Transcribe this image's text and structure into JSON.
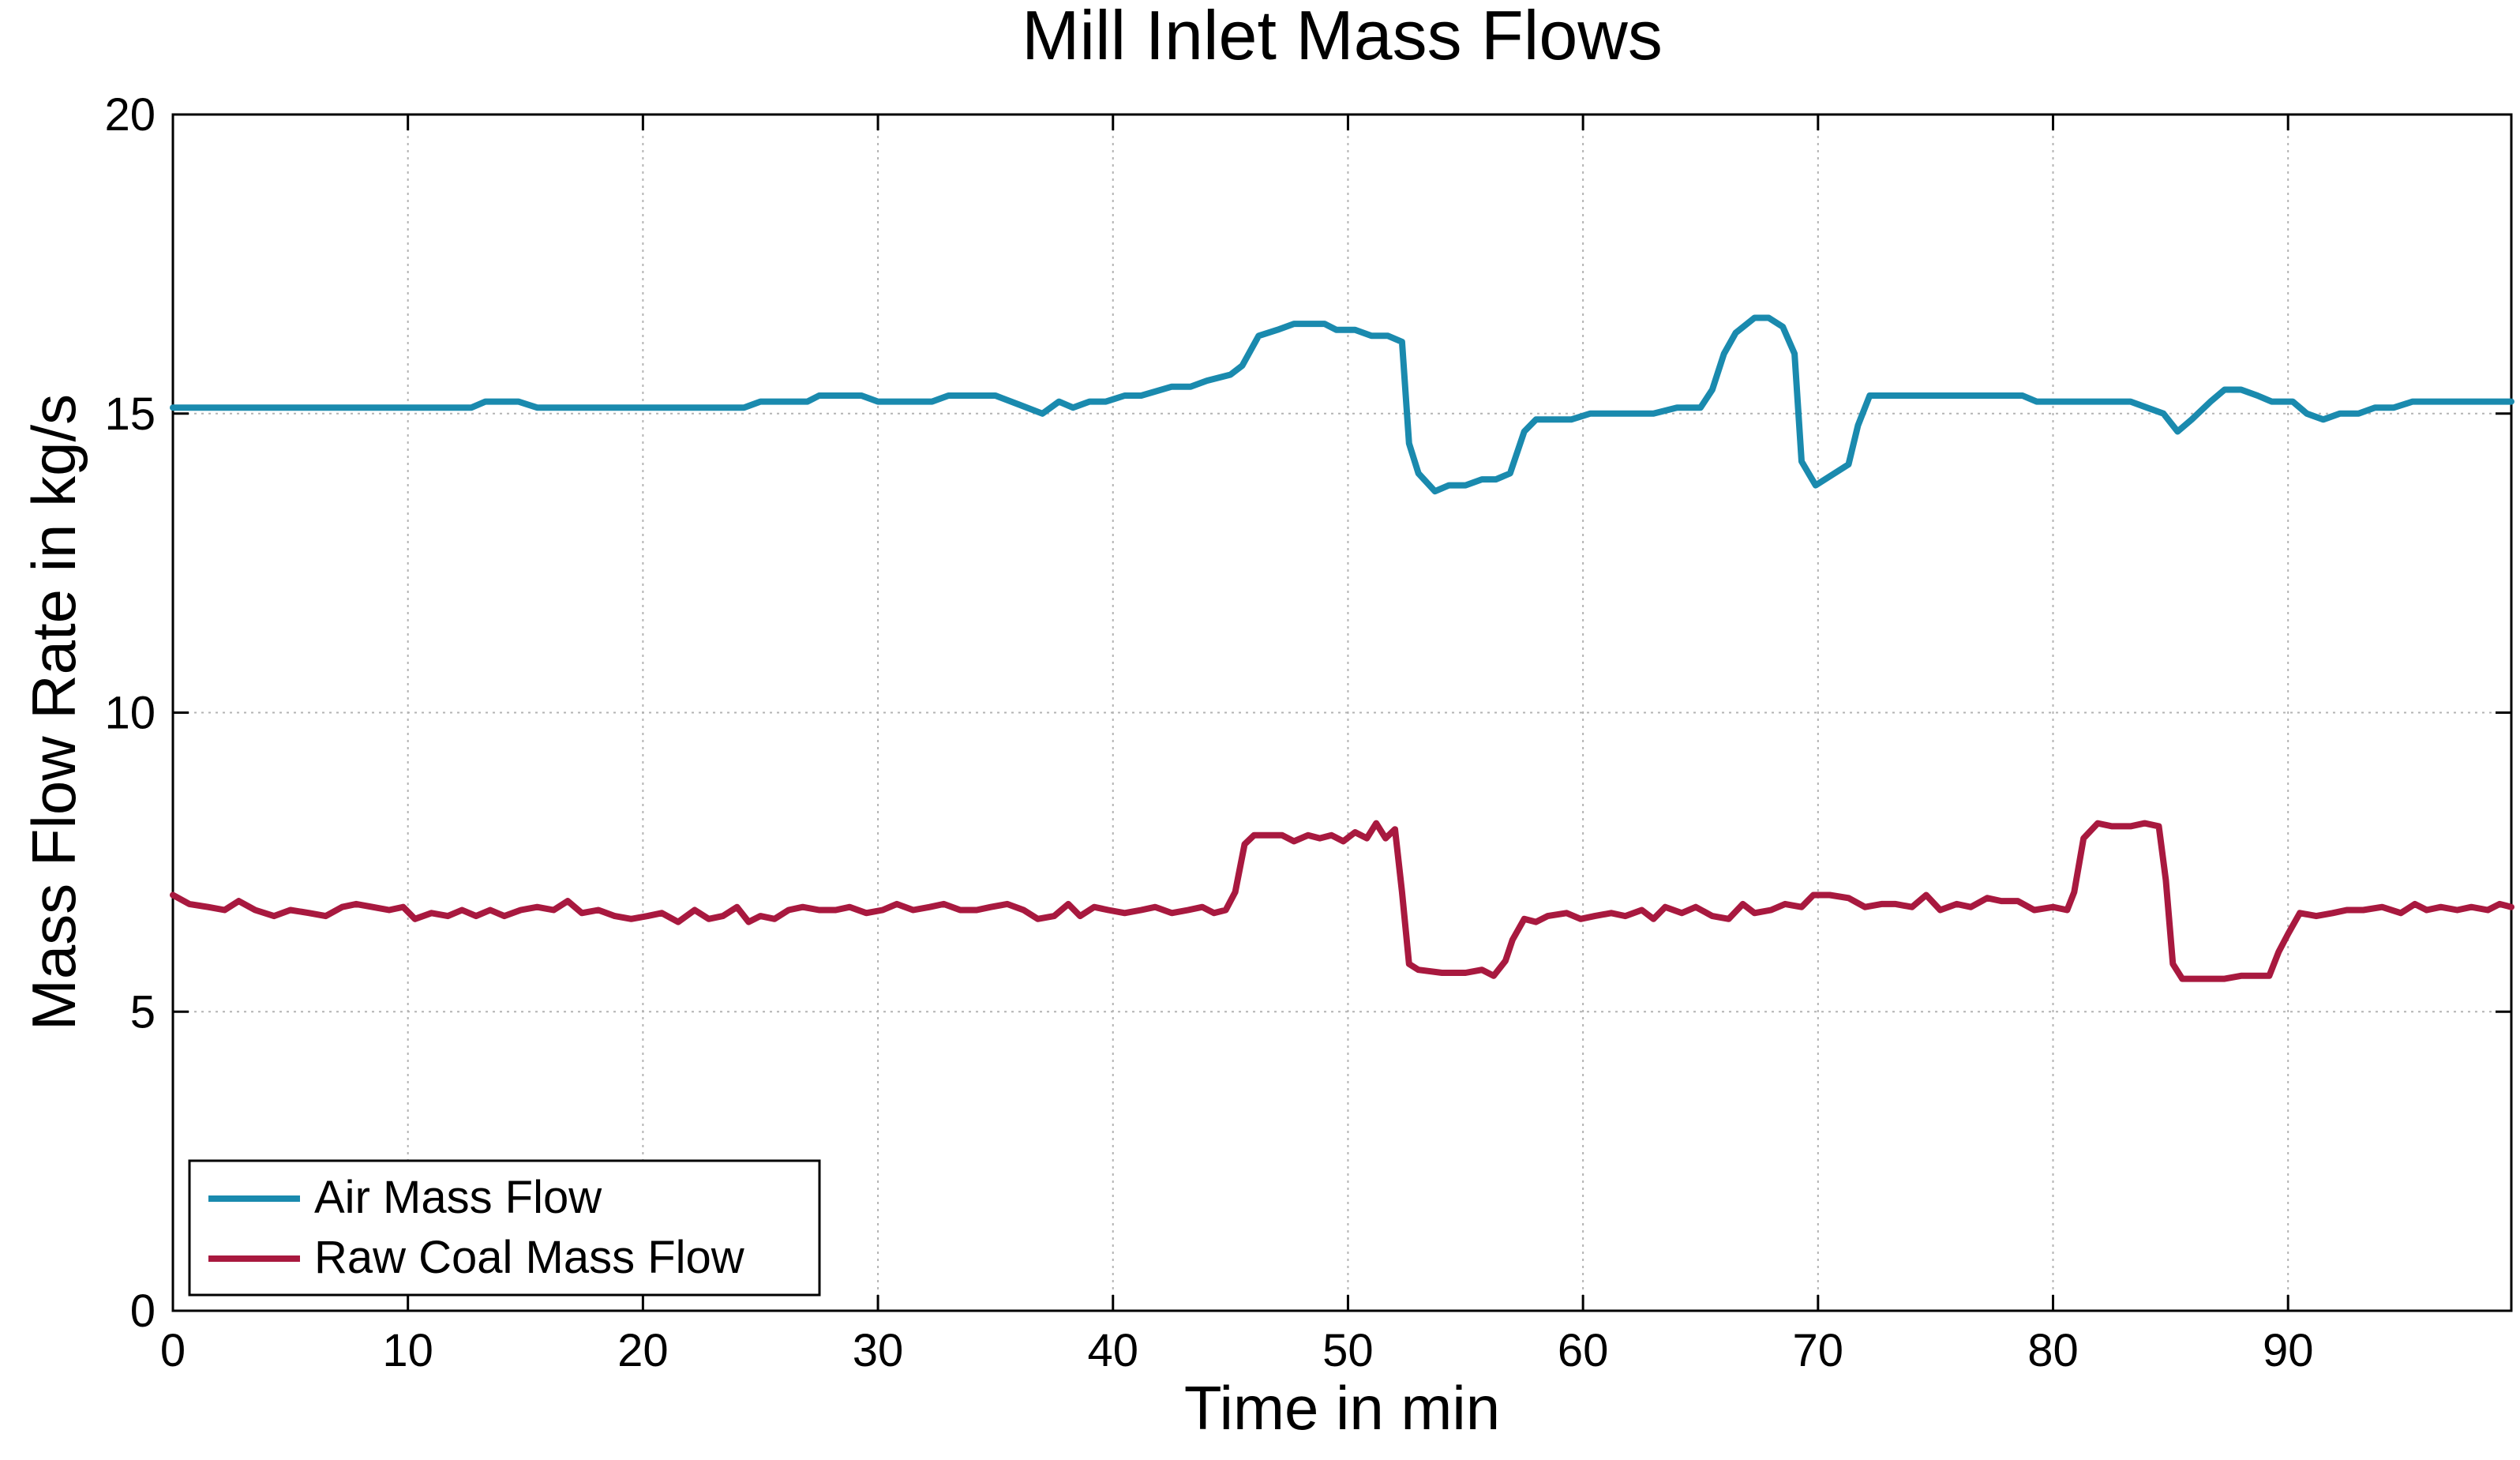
{
  "chart_data": {
    "type": "line",
    "title": "Mill Inlet Mass Flows",
    "xlabel": "Time in min",
    "ylabel": "Mass Flow Rate in kg/s",
    "xlim": [
      0,
      99.5
    ],
    "ylim": [
      0,
      20
    ],
    "xticks": [
      0,
      10,
      20,
      30,
      40,
      50,
      60,
      70,
      80,
      90
    ],
    "yticks": [
      0,
      5,
      10,
      15,
      20
    ],
    "grid": true,
    "legend_position": "bottom-left",
    "series": [
      {
        "name": "Air Mass Flow",
        "color": "#1A8AAE",
        "points": [
          [
            0,
            15.1
          ],
          [
            12.7,
            15.1
          ],
          [
            13.3,
            15.2
          ],
          [
            14.7,
            15.2
          ],
          [
            15.5,
            15.1
          ],
          [
            24.3,
            15.1
          ],
          [
            25,
            15.2
          ],
          [
            27,
            15.2
          ],
          [
            27.5,
            15.3
          ],
          [
            29.3,
            15.3
          ],
          [
            30,
            15.2
          ],
          [
            32.3,
            15.2
          ],
          [
            33,
            15.3
          ],
          [
            35,
            15.3
          ],
          [
            36,
            15.15
          ],
          [
            37,
            15.0
          ],
          [
            37.7,
            15.2
          ],
          [
            38.3,
            15.1
          ],
          [
            39,
            15.2
          ],
          [
            39.7,
            15.2
          ],
          [
            40.5,
            15.3
          ],
          [
            41.2,
            15.3
          ],
          [
            42.5,
            15.45
          ],
          [
            43.3,
            15.45
          ],
          [
            44,
            15.55
          ],
          [
            45,
            15.65
          ],
          [
            45.5,
            15.8
          ],
          [
            46.2,
            16.3
          ],
          [
            47,
            16.4
          ],
          [
            47.7,
            16.5
          ],
          [
            49,
            16.5
          ],
          [
            49.5,
            16.4
          ],
          [
            50.3,
            16.4
          ],
          [
            51,
            16.3
          ],
          [
            51.7,
            16.3
          ],
          [
            52.3,
            16.2
          ],
          [
            52.6,
            14.5
          ],
          [
            53,
            14.0
          ],
          [
            53.7,
            13.7
          ],
          [
            54.3,
            13.8
          ],
          [
            55,
            13.8
          ],
          [
            55.7,
            13.9
          ],
          [
            56.3,
            13.9
          ],
          [
            56.9,
            14.0
          ],
          [
            57.5,
            14.7
          ],
          [
            58,
            14.9
          ],
          [
            59.5,
            14.9
          ],
          [
            60.3,
            15.0
          ],
          [
            63,
            15.0
          ],
          [
            64,
            15.1
          ],
          [
            65,
            15.1
          ],
          [
            65.5,
            15.4
          ],
          [
            66,
            16.0
          ],
          [
            66.5,
            16.35
          ],
          [
            67.3,
            16.6
          ],
          [
            67.9,
            16.6
          ],
          [
            68.5,
            16.45
          ],
          [
            69,
            16.0
          ],
          [
            69.3,
            14.2
          ],
          [
            69.9,
            13.8
          ],
          [
            70.5,
            13.95
          ],
          [
            71.3,
            14.15
          ],
          [
            71.7,
            14.8
          ],
          [
            72.2,
            15.3
          ],
          [
            78.7,
            15.3
          ],
          [
            79.3,
            15.2
          ],
          [
            83.3,
            15.2
          ],
          [
            84,
            15.1
          ],
          [
            84.7,
            15.0
          ],
          [
            85.3,
            14.7
          ],
          [
            85.9,
            14.9
          ],
          [
            86.7,
            15.2
          ],
          [
            87.3,
            15.4
          ],
          [
            88,
            15.4
          ],
          [
            88.7,
            15.3
          ],
          [
            89.3,
            15.2
          ],
          [
            90.2,
            15.2
          ],
          [
            90.8,
            15.0
          ],
          [
            91.5,
            14.9
          ],
          [
            92.2,
            15.0
          ],
          [
            93,
            15.0
          ],
          [
            93.7,
            15.1
          ],
          [
            94.5,
            15.1
          ],
          [
            95.3,
            15.2
          ],
          [
            99.5,
            15.2
          ]
        ]
      },
      {
        "name": "Raw Coal Mass Flow",
        "color": "#A8193F",
        "points": [
          [
            0,
            6.95
          ],
          [
            0.7,
            6.8
          ],
          [
            1.5,
            6.75
          ],
          [
            2.2,
            6.7
          ],
          [
            2.8,
            6.85
          ],
          [
            3.5,
            6.7
          ],
          [
            4.3,
            6.6
          ],
          [
            5,
            6.7
          ],
          [
            5.8,
            6.65
          ],
          [
            6.5,
            6.6
          ],
          [
            7.2,
            6.75
          ],
          [
            7.8,
            6.8
          ],
          [
            8.5,
            6.75
          ],
          [
            9.2,
            6.7
          ],
          [
            9.8,
            6.75
          ],
          [
            10.3,
            6.55
          ],
          [
            11,
            6.65
          ],
          [
            11.7,
            6.6
          ],
          [
            12.3,
            6.7
          ],
          [
            12.9,
            6.6
          ],
          [
            13.5,
            6.7
          ],
          [
            14.1,
            6.6
          ],
          [
            14.8,
            6.7
          ],
          [
            15.5,
            6.75
          ],
          [
            16.2,
            6.7
          ],
          [
            16.8,
            6.85
          ],
          [
            17.4,
            6.65
          ],
          [
            18.1,
            6.7
          ],
          [
            18.8,
            6.6
          ],
          [
            19.5,
            6.55
          ],
          [
            20.2,
            6.6
          ],
          [
            20.8,
            6.65
          ],
          [
            21.5,
            6.5
          ],
          [
            22.2,
            6.7
          ],
          [
            22.8,
            6.55
          ],
          [
            23.4,
            6.6
          ],
          [
            24,
            6.75
          ],
          [
            24.5,
            6.5
          ],
          [
            25,
            6.6
          ],
          [
            25.6,
            6.55
          ],
          [
            26.2,
            6.7
          ],
          [
            26.8,
            6.75
          ],
          [
            27.5,
            6.7
          ],
          [
            28.2,
            6.7
          ],
          [
            28.8,
            6.75
          ],
          [
            29.5,
            6.65
          ],
          [
            30.2,
            6.7
          ],
          [
            30.8,
            6.8
          ],
          [
            31.5,
            6.7
          ],
          [
            32.2,
            6.75
          ],
          [
            32.8,
            6.8
          ],
          [
            33.5,
            6.7
          ],
          [
            34.2,
            6.7
          ],
          [
            34.8,
            6.75
          ],
          [
            35.5,
            6.8
          ],
          [
            36.2,
            6.7
          ],
          [
            36.8,
            6.55
          ],
          [
            37.5,
            6.6
          ],
          [
            38.1,
            6.8
          ],
          [
            38.6,
            6.6
          ],
          [
            39.2,
            6.75
          ],
          [
            39.8,
            6.7
          ],
          [
            40.5,
            6.65
          ],
          [
            41.2,
            6.7
          ],
          [
            41.8,
            6.75
          ],
          [
            42.5,
            6.65
          ],
          [
            43.2,
            6.7
          ],
          [
            43.8,
            6.75
          ],
          [
            44.3,
            6.65
          ],
          [
            44.8,
            6.7
          ],
          [
            45.2,
            7.0
          ],
          [
            45.6,
            7.8
          ],
          [
            46,
            7.95
          ],
          [
            47.2,
            7.95
          ],
          [
            47.7,
            7.85
          ],
          [
            48.3,
            7.95
          ],
          [
            48.8,
            7.9
          ],
          [
            49.3,
            7.95
          ],
          [
            49.8,
            7.85
          ],
          [
            50.3,
            8.0
          ],
          [
            50.8,
            7.9
          ],
          [
            51.2,
            8.15
          ],
          [
            51.6,
            7.9
          ],
          [
            52,
            8.05
          ],
          [
            52.3,
            7.0
          ],
          [
            52.6,
            5.8
          ],
          [
            53,
            5.7
          ],
          [
            54,
            5.65
          ],
          [
            55,
            5.65
          ],
          [
            55.7,
            5.7
          ],
          [
            56.2,
            5.6
          ],
          [
            56.7,
            5.85
          ],
          [
            57,
            6.2
          ],
          [
            57.5,
            6.55
          ],
          [
            58,
            6.5
          ],
          [
            58.5,
            6.6
          ],
          [
            59.3,
            6.65
          ],
          [
            59.9,
            6.55
          ],
          [
            60.5,
            6.6
          ],
          [
            61.2,
            6.65
          ],
          [
            61.8,
            6.6
          ],
          [
            62.5,
            6.7
          ],
          [
            63,
            6.55
          ],
          [
            63.5,
            6.75
          ],
          [
            64.2,
            6.65
          ],
          [
            64.8,
            6.75
          ],
          [
            65.5,
            6.6
          ],
          [
            66.2,
            6.55
          ],
          [
            66.8,
            6.8
          ],
          [
            67.3,
            6.65
          ],
          [
            68,
            6.7
          ],
          [
            68.6,
            6.8
          ],
          [
            69.3,
            6.75
          ],
          [
            69.8,
            6.95
          ],
          [
            70.5,
            6.95
          ],
          [
            71.3,
            6.9
          ],
          [
            72,
            6.75
          ],
          [
            72.7,
            6.8
          ],
          [
            73.3,
            6.8
          ],
          [
            74,
            6.75
          ],
          [
            74.6,
            6.95
          ],
          [
            75.2,
            6.7
          ],
          [
            75.9,
            6.8
          ],
          [
            76.5,
            6.75
          ],
          [
            77.2,
            6.9
          ],
          [
            77.8,
            6.85
          ],
          [
            78.5,
            6.85
          ],
          [
            79.2,
            6.7
          ],
          [
            80,
            6.75
          ],
          [
            80.6,
            6.7
          ],
          [
            80.9,
            7.0
          ],
          [
            81.3,
            7.9
          ],
          [
            81.9,
            8.15
          ],
          [
            82.5,
            8.1
          ],
          [
            83.3,
            8.1
          ],
          [
            83.9,
            8.15
          ],
          [
            84.5,
            8.1
          ],
          [
            84.8,
            7.2
          ],
          [
            85.1,
            5.8
          ],
          [
            85.5,
            5.55
          ],
          [
            87.3,
            5.55
          ],
          [
            88,
            5.6
          ],
          [
            89.2,
            5.6
          ],
          [
            89.6,
            6.0
          ],
          [
            90,
            6.3
          ],
          [
            90.5,
            6.65
          ],
          [
            91.2,
            6.6
          ],
          [
            91.9,
            6.65
          ],
          [
            92.5,
            6.7
          ],
          [
            93.2,
            6.7
          ],
          [
            94,
            6.75
          ],
          [
            94.8,
            6.65
          ],
          [
            95.4,
            6.8
          ],
          [
            95.9,
            6.7
          ],
          [
            96.5,
            6.75
          ],
          [
            97.2,
            6.7
          ],
          [
            97.8,
            6.75
          ],
          [
            98.5,
            6.7
          ],
          [
            99,
            6.8
          ],
          [
            99.5,
            6.75
          ]
        ]
      }
    ]
  }
}
